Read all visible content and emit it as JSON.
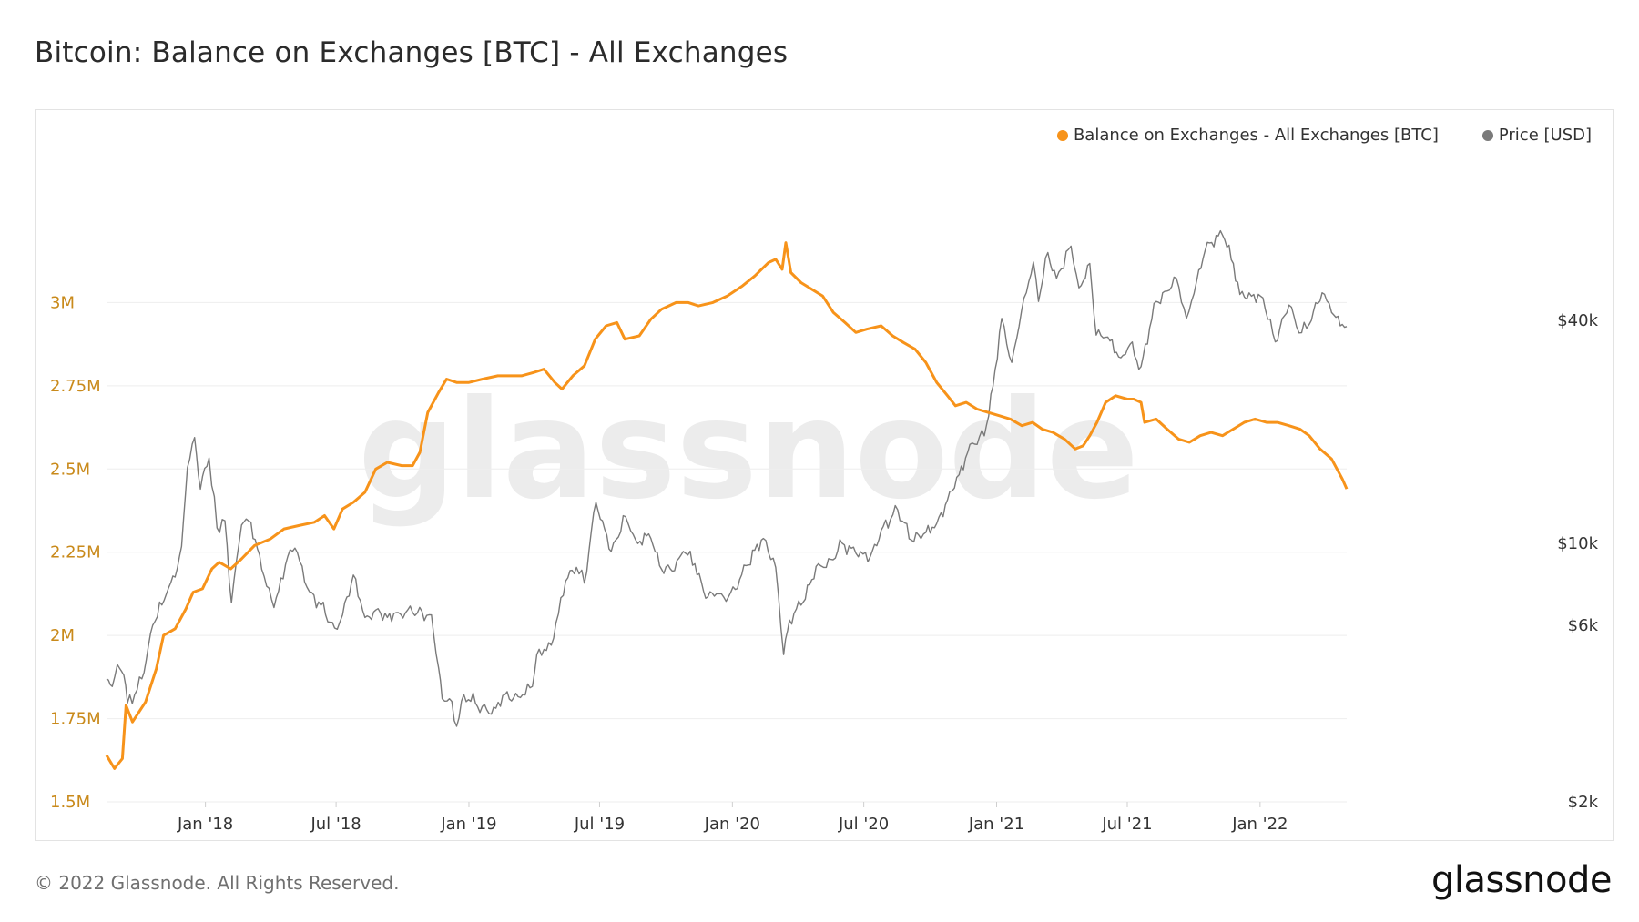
{
  "header": {
    "title": "Bitcoin: Balance on Exchanges [BTC] - All Exchanges"
  },
  "footer": {
    "copyright": "© 2022 Glassnode. All Rights Reserved.",
    "logo_text": "glassnode"
  },
  "watermark": "glassnode",
  "colors": {
    "balance": "#f7931a",
    "price": "#7a7a7a",
    "grid": "#eeeeee",
    "left_axis_text": "#c98a1b",
    "right_axis_text": "#333333"
  },
  "chart_data": {
    "type": "line",
    "title": "Bitcoin: Balance on Exchanges [BTC] - All Exchanges",
    "legend_position": "top-right",
    "grid": true,
    "x_range": [
      "2017-08-17",
      "2022-05-01"
    ],
    "x_ticks": [
      {
        "date": "2018-01-01",
        "label": "Jan '18"
      },
      {
        "date": "2018-07-01",
        "label": "Jul '18"
      },
      {
        "date": "2019-01-01",
        "label": "Jan '19"
      },
      {
        "date": "2019-07-01",
        "label": "Jul '19"
      },
      {
        "date": "2020-01-01",
        "label": "Jan '20"
      },
      {
        "date": "2020-07-01",
        "label": "Jul '20"
      },
      {
        "date": "2021-01-01",
        "label": "Jan '21"
      },
      {
        "date": "2021-07-01",
        "label": "Jul '21"
      },
      {
        "date": "2022-01-01",
        "label": "Jan '22"
      }
    ],
    "y_left": {
      "ylim": [
        1500000,
        3250000
      ],
      "ticks": [
        {
          "value": 1500000,
          "label": "1.5M"
        },
        {
          "value": 1750000,
          "label": "1.75M"
        },
        {
          "value": 2000000,
          "label": "2M"
        },
        {
          "value": 2250000,
          "label": "2.25M"
        },
        {
          "value": 2500000,
          "label": "2.5M"
        },
        {
          "value": 2750000,
          "label": "2.75M"
        },
        {
          "value": 3000000,
          "label": "3M"
        }
      ]
    },
    "y_right": {
      "scale": "log",
      "ylim": [
        2000,
        75000
      ],
      "ticks": [
        {
          "value": 2000,
          "label": "$2k"
        },
        {
          "value": 6000,
          "label": "$6k"
        },
        {
          "value": 10000,
          "label": "$10k"
        },
        {
          "value": 40000,
          "label": "$40k"
        }
      ]
    },
    "series": [
      {
        "name": "Balance on Exchanges - All Exchanges [BTC]",
        "axis": "left",
        "points": [
          [
            "2017-08-17",
            1640000
          ],
          [
            "2017-08-28",
            1600000
          ],
          [
            "2017-09-08",
            1630000
          ],
          [
            "2017-09-13",
            1790000
          ],
          [
            "2017-09-22",
            1740000
          ],
          [
            "2017-10-10",
            1800000
          ],
          [
            "2017-10-25",
            1900000
          ],
          [
            "2017-11-04",
            2000000
          ],
          [
            "2017-11-20",
            2020000
          ],
          [
            "2017-12-05",
            2080000
          ],
          [
            "2017-12-15",
            2130000
          ],
          [
            "2017-12-28",
            2140000
          ],
          [
            "2018-01-10",
            2200000
          ],
          [
            "2018-01-20",
            2220000
          ],
          [
            "2018-02-05",
            2200000
          ],
          [
            "2018-02-20",
            2230000
          ],
          [
            "2018-03-10",
            2270000
          ],
          [
            "2018-04-01",
            2290000
          ],
          [
            "2018-04-20",
            2320000
          ],
          [
            "2018-05-10",
            2330000
          ],
          [
            "2018-06-01",
            2340000
          ],
          [
            "2018-06-15",
            2360000
          ],
          [
            "2018-06-28",
            2320000
          ],
          [
            "2018-07-10",
            2380000
          ],
          [
            "2018-07-25",
            2400000
          ],
          [
            "2018-08-10",
            2430000
          ],
          [
            "2018-08-25",
            2500000
          ],
          [
            "2018-09-10",
            2520000
          ],
          [
            "2018-09-30",
            2510000
          ],
          [
            "2018-10-15",
            2510000
          ],
          [
            "2018-10-25",
            2550000
          ],
          [
            "2018-11-05",
            2670000
          ],
          [
            "2018-11-20",
            2730000
          ],
          [
            "2018-12-01",
            2770000
          ],
          [
            "2018-12-15",
            2760000
          ],
          [
            "2019-01-01",
            2760000
          ],
          [
            "2019-01-20",
            2770000
          ],
          [
            "2019-02-10",
            2780000
          ],
          [
            "2019-03-01",
            2780000
          ],
          [
            "2019-03-15",
            2780000
          ],
          [
            "2019-04-01",
            2790000
          ],
          [
            "2019-04-15",
            2800000
          ],
          [
            "2019-04-30",
            2760000
          ],
          [
            "2019-05-10",
            2740000
          ],
          [
            "2019-05-25",
            2780000
          ],
          [
            "2019-06-10",
            2810000
          ],
          [
            "2019-06-25",
            2890000
          ],
          [
            "2019-07-10",
            2930000
          ],
          [
            "2019-07-25",
            2940000
          ],
          [
            "2019-08-05",
            2890000
          ],
          [
            "2019-08-25",
            2900000
          ],
          [
            "2019-09-10",
            2950000
          ],
          [
            "2019-09-25",
            2980000
          ],
          [
            "2019-10-15",
            3000000
          ],
          [
            "2019-11-01",
            3000000
          ],
          [
            "2019-11-15",
            2990000
          ],
          [
            "2019-12-05",
            3000000
          ],
          [
            "2019-12-25",
            3020000
          ],
          [
            "2020-01-15",
            3050000
          ],
          [
            "2020-02-01",
            3080000
          ],
          [
            "2020-02-20",
            3120000
          ],
          [
            "2020-03-01",
            3130000
          ],
          [
            "2020-03-10",
            3100000
          ],
          [
            "2020-03-15",
            3180000
          ],
          [
            "2020-03-22",
            3090000
          ],
          [
            "2020-04-05",
            3060000
          ],
          [
            "2020-04-20",
            3040000
          ],
          [
            "2020-05-05",
            3020000
          ],
          [
            "2020-05-20",
            2970000
          ],
          [
            "2020-06-05",
            2940000
          ],
          [
            "2020-06-20",
            2910000
          ],
          [
            "2020-07-05",
            2920000
          ],
          [
            "2020-07-25",
            2930000
          ],
          [
            "2020-08-10",
            2900000
          ],
          [
            "2020-08-25",
            2880000
          ],
          [
            "2020-09-10",
            2860000
          ],
          [
            "2020-09-25",
            2820000
          ],
          [
            "2020-10-10",
            2760000
          ],
          [
            "2020-10-25",
            2720000
          ],
          [
            "2020-11-05",
            2690000
          ],
          [
            "2020-11-20",
            2700000
          ],
          [
            "2020-12-05",
            2680000
          ],
          [
            "2020-12-20",
            2670000
          ],
          [
            "2021-01-05",
            2660000
          ],
          [
            "2021-01-20",
            2650000
          ],
          [
            "2021-02-05",
            2630000
          ],
          [
            "2021-02-20",
            2640000
          ],
          [
            "2021-03-05",
            2620000
          ],
          [
            "2021-03-20",
            2610000
          ],
          [
            "2021-04-05",
            2590000
          ],
          [
            "2021-04-20",
            2560000
          ],
          [
            "2021-05-01",
            2570000
          ],
          [
            "2021-05-10",
            2600000
          ],
          [
            "2021-05-20",
            2640000
          ],
          [
            "2021-06-01",
            2700000
          ],
          [
            "2021-06-15",
            2720000
          ],
          [
            "2021-07-01",
            2710000
          ],
          [
            "2021-07-10",
            2710000
          ],
          [
            "2021-07-20",
            2700000
          ],
          [
            "2021-07-25",
            2640000
          ],
          [
            "2021-08-10",
            2650000
          ],
          [
            "2021-08-25",
            2620000
          ],
          [
            "2021-09-10",
            2590000
          ],
          [
            "2021-09-25",
            2580000
          ],
          [
            "2021-10-10",
            2600000
          ],
          [
            "2021-10-25",
            2610000
          ],
          [
            "2021-11-10",
            2600000
          ],
          [
            "2021-11-25",
            2620000
          ],
          [
            "2021-12-10",
            2640000
          ],
          [
            "2021-12-25",
            2650000
          ],
          [
            "2022-01-10",
            2640000
          ],
          [
            "2022-01-25",
            2640000
          ],
          [
            "2022-02-10",
            2630000
          ],
          [
            "2022-02-25",
            2620000
          ],
          [
            "2022-03-10",
            2600000
          ],
          [
            "2022-03-25",
            2560000
          ],
          [
            "2022-04-10",
            2530000
          ],
          [
            "2022-04-25",
            2470000
          ],
          [
            "2022-05-01",
            2440000
          ]
        ]
      },
      {
        "name": "Price [USD]",
        "axis": "right",
        "points": [
          [
            "2017-08-17",
            4300
          ],
          [
            "2017-08-25",
            4100
          ],
          [
            "2017-09-01",
            4700
          ],
          [
            "2017-09-10",
            4400
          ],
          [
            "2017-09-15",
            3700
          ],
          [
            "2017-09-25",
            3900
          ],
          [
            "2017-10-05",
            4300
          ],
          [
            "2017-10-20",
            6000
          ],
          [
            "2017-11-08",
            7300
          ],
          [
            "2017-11-20",
            8100
          ],
          [
            "2017-11-29",
            9800
          ],
          [
            "2017-12-07",
            16000
          ],
          [
            "2017-12-17",
            19300
          ],
          [
            "2017-12-25",
            14000
          ],
          [
            "2018-01-06",
            17000
          ],
          [
            "2018-01-17",
            11000
          ],
          [
            "2018-01-28",
            11500
          ],
          [
            "2018-02-06",
            6900
          ],
          [
            "2018-02-20",
            11200
          ],
          [
            "2018-03-05",
            11400
          ],
          [
            "2018-03-20",
            8500
          ],
          [
            "2018-04-06",
            6700
          ],
          [
            "2018-04-25",
            9200
          ],
          [
            "2018-05-05",
            9700
          ],
          [
            "2018-05-25",
            7400
          ],
          [
            "2018-06-10",
            6800
          ],
          [
            "2018-06-29",
            5900
          ],
          [
            "2018-07-10",
            6400
          ],
          [
            "2018-07-25",
            8200
          ],
          [
            "2018-08-10",
            6300
          ],
          [
            "2018-08-25",
            6600
          ],
          [
            "2018-09-10",
            6300
          ],
          [
            "2018-09-25",
            6500
          ],
          [
            "2018-10-15",
            6500
          ],
          [
            "2018-11-10",
            6400
          ],
          [
            "2018-11-20",
            4600
          ],
          [
            "2018-11-25",
            3800
          ],
          [
            "2018-12-05",
            3800
          ],
          [
            "2018-12-15",
            3200
          ],
          [
            "2018-12-25",
            3900
          ],
          [
            "2019-01-10",
            3700
          ],
          [
            "2019-02-01",
            3450
          ],
          [
            "2019-02-20",
            3900
          ],
          [
            "2019-03-10",
            3850
          ],
          [
            "2019-03-30",
            4100
          ],
          [
            "2019-04-05",
            5000
          ],
          [
            "2019-04-25",
            5300
          ],
          [
            "2019-05-15",
            7900
          ],
          [
            "2019-05-30",
            8600
          ],
          [
            "2019-06-10",
            7800
          ],
          [
            "2019-06-26",
            12900
          ],
          [
            "2019-07-05",
            11500
          ],
          [
            "2019-07-17",
            9500
          ],
          [
            "2019-08-06",
            11800
          ],
          [
            "2019-08-20",
            10200
          ],
          [
            "2019-09-10",
            10300
          ],
          [
            "2019-09-25",
            8500
          ],
          [
            "2019-10-10",
            8400
          ],
          [
            "2019-10-25",
            9500
          ],
          [
            "2019-11-10",
            8800
          ],
          [
            "2019-11-25",
            7100
          ],
          [
            "2019-12-10",
            7300
          ],
          [
            "2019-12-20",
            7150
          ],
          [
            "2020-01-05",
            7500
          ],
          [
            "2020-01-20",
            8700
          ],
          [
            "2020-02-13",
            10300
          ],
          [
            "2020-03-01",
            8600
          ],
          [
            "2020-03-12",
            5000
          ],
          [
            "2020-03-20",
            6200
          ],
          [
            "2020-04-05",
            6800
          ],
          [
            "2020-04-29",
            8800
          ],
          [
            "2020-05-10",
            8600
          ],
          [
            "2020-06-01",
            10000
          ],
          [
            "2020-06-20",
            9400
          ],
          [
            "2020-07-10",
            9200
          ],
          [
            "2020-07-28",
            11100
          ],
          [
            "2020-08-17",
            12300
          ],
          [
            "2020-09-05",
            10200
          ],
          [
            "2020-09-25",
            10700
          ],
          [
            "2020-10-10",
            11300
          ],
          [
            "2020-10-25",
            13100
          ],
          [
            "2020-11-10",
            15300
          ],
          [
            "2020-11-25",
            18500
          ],
          [
            "2020-12-15",
            19500
          ],
          [
            "2020-12-27",
            26500
          ],
          [
            "2021-01-08",
            40500
          ],
          [
            "2021-01-22",
            30800
          ],
          [
            "2021-02-08",
            46000
          ],
          [
            "2021-02-21",
            57500
          ],
          [
            "2021-02-28",
            45000
          ],
          [
            "2021-03-13",
            61000
          ],
          [
            "2021-03-25",
            52000
          ],
          [
            "2021-04-14",
            63500
          ],
          [
            "2021-04-25",
            49000
          ],
          [
            "2021-05-10",
            57000
          ],
          [
            "2021-05-19",
            36500
          ],
          [
            "2021-06-01",
            36000
          ],
          [
            "2021-06-22",
            31700
          ],
          [
            "2021-07-05",
            34500
          ],
          [
            "2021-07-20",
            30000
          ],
          [
            "2021-08-10",
            45000
          ],
          [
            "2021-08-25",
            48000
          ],
          [
            "2021-09-07",
            52000
          ],
          [
            "2021-09-21",
            40500
          ],
          [
            "2021-10-05",
            51000
          ],
          [
            "2021-10-20",
            65000
          ],
          [
            "2021-11-10",
            68000
          ],
          [
            "2021-11-25",
            57000
          ],
          [
            "2021-12-04",
            47000
          ],
          [
            "2021-12-20",
            46500
          ],
          [
            "2022-01-05",
            46000
          ],
          [
            "2022-01-22",
            35000
          ],
          [
            "2022-02-10",
            44000
          ],
          [
            "2022-02-24",
            37000
          ],
          [
            "2022-03-10",
            39000
          ],
          [
            "2022-03-28",
            47500
          ],
          [
            "2022-04-10",
            42000
          ],
          [
            "2022-04-25",
            39000
          ],
          [
            "2022-05-01",
            38500
          ]
        ]
      }
    ]
  }
}
